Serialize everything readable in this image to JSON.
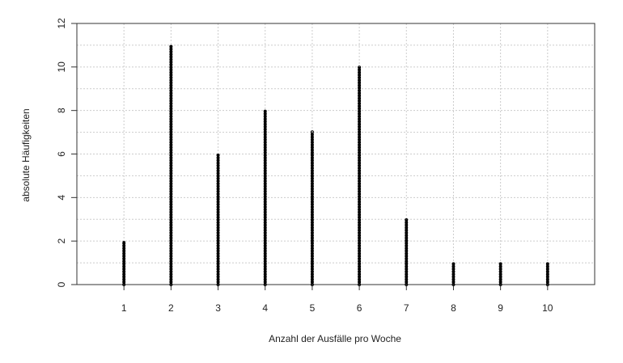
{
  "chart_data": {
    "type": "bar",
    "style": "stacked-points-spikes",
    "title": "",
    "xlabel": "Anzahl der Ausfälle pro Woche",
    "ylabel": "absolute Häufigkeiten",
    "categories": [
      "1",
      "2",
      "3",
      "4",
      "5",
      "6",
      "7",
      "8",
      "9",
      "10"
    ],
    "x": [
      1,
      2,
      3,
      4,
      5,
      6,
      7,
      8,
      9,
      10
    ],
    "values": [
      2,
      11,
      6,
      8,
      7,
      10,
      3,
      1,
      1,
      1
    ],
    "xlim": [
      0,
      11
    ],
    "ylim": [
      0,
      12
    ],
    "yticks": [
      0,
      2,
      4,
      6,
      8,
      10,
      12
    ],
    "yticks_minor": [
      1,
      3,
      5,
      7,
      9,
      11
    ],
    "grid": true,
    "grid_style": "dotted light gray",
    "legend": "none",
    "colors": {
      "marks": "#000000",
      "grid": "#cccccc",
      "axes": "#333333",
      "text": "#222222"
    }
  }
}
